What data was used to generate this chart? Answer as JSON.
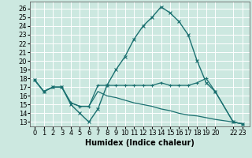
{
  "xlabel": "Humidex (Indice chaleur)",
  "bg_color": "#cce8e0",
  "grid_color": "#ffffff",
  "line_color": "#1a7070",
  "ylim": [
    12.5,
    26.8
  ],
  "yticks": [
    13,
    14,
    15,
    16,
    17,
    18,
    19,
    20,
    21,
    22,
    23,
    24,
    25,
    26
  ],
  "xticks": [
    0,
    1,
    2,
    3,
    4,
    5,
    6,
    7,
    8,
    9,
    10,
    11,
    12,
    13,
    14,
    15,
    16,
    17,
    18,
    19,
    20,
    22,
    23
  ],
  "xlim": [
    -0.5,
    23.8
  ],
  "series": [
    {
      "x": [
        0,
        1,
        2,
        3,
        4,
        5,
        6,
        7,
        8,
        9,
        10,
        11,
        12,
        13,
        14,
        15,
        16,
        17,
        18,
        19,
        20,
        22,
        23
      ],
      "y": [
        17.8,
        16.5,
        17.0,
        17.0,
        15.0,
        14.0,
        13.0,
        14.5,
        17.2,
        19.0,
        20.5,
        22.5,
        24.0,
        25.0,
        26.2,
        25.5,
        24.5,
        23.0,
        20.0,
        17.5,
        16.5,
        13.0,
        12.8
      ],
      "marker": "x",
      "markersize": 3,
      "linewidth": 1.0
    },
    {
      "x": [
        0,
        1,
        2,
        3,
        4,
        5,
        6,
        7,
        8,
        9,
        10,
        11,
        12,
        13,
        14,
        15,
        16,
        17,
        18,
        19,
        20,
        22,
        23
      ],
      "y": [
        17.8,
        16.5,
        17.0,
        17.0,
        15.2,
        14.8,
        14.8,
        17.2,
        17.2,
        17.2,
        17.2,
        17.2,
        17.2,
        17.2,
        17.5,
        17.2,
        17.2,
        17.2,
        17.5,
        18.0,
        16.5,
        13.0,
        12.8
      ],
      "marker": "+",
      "markersize": 3,
      "linewidth": 0.9
    },
    {
      "x": [
        0,
        1,
        2,
        3,
        4,
        5,
        6,
        7,
        8,
        9,
        10,
        11,
        12,
        13,
        14,
        15,
        16,
        17,
        18,
        19,
        20,
        22,
        23
      ],
      "y": [
        17.8,
        16.5,
        17.0,
        17.0,
        15.2,
        14.8,
        14.8,
        16.5,
        16.0,
        15.8,
        15.5,
        15.2,
        15.0,
        14.8,
        14.5,
        14.3,
        14.0,
        13.8,
        13.7,
        13.5,
        13.3,
        13.0,
        12.8
      ],
      "marker": null,
      "markersize": 0,
      "linewidth": 0.9
    }
  ],
  "tick_fontsize": 6,
  "xlabel_fontsize": 7
}
